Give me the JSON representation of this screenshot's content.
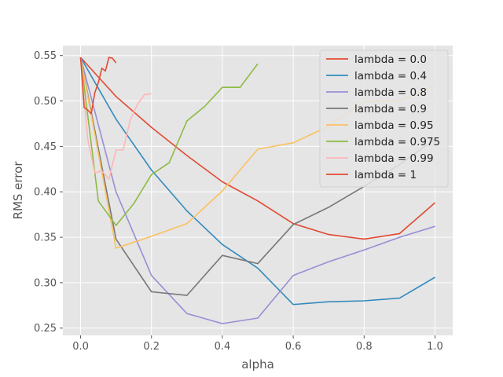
{
  "chart_data": {
    "type": "line",
    "title": "",
    "xlabel": "alpha",
    "ylabel": "RMS error",
    "xlim": [
      -0.05,
      1.05
    ],
    "ylim": [
      0.242,
      0.561
    ],
    "xticks": [
      0.0,
      0.2,
      0.4,
      0.6,
      0.8,
      1.0
    ],
    "xtick_labels": [
      "0.0",
      "0.2",
      "0.4",
      "0.6",
      "0.8",
      "1.0"
    ],
    "yticks": [
      0.25,
      0.3,
      0.35,
      0.4,
      0.45,
      0.5,
      0.55
    ],
    "ytick_labels": [
      "0.25",
      "0.30",
      "0.35",
      "0.40",
      "0.45",
      "0.50",
      "0.55"
    ],
    "grid": true,
    "legend_position": "top-right",
    "series": [
      {
        "name": "lambda = 0.0",
        "color": "#E24A33",
        "x": [
          0,
          0.1,
          0.2,
          0.3,
          0.4,
          0.5,
          0.6,
          0.7,
          0.8,
          0.9,
          1.0
        ],
        "y": [
          0.548,
          0.505,
          0.471,
          0.44,
          0.411,
          0.39,
          0.365,
          0.353,
          0.348,
          0.354,
          0.388
        ]
      },
      {
        "name": "lambda = 0.4",
        "color": "#348ABD",
        "x": [
          0,
          0.1,
          0.2,
          0.3,
          0.4,
          0.5,
          0.6,
          0.7,
          0.8,
          0.9,
          1.0
        ],
        "y": [
          0.548,
          0.48,
          0.424,
          0.379,
          0.342,
          0.316,
          0.276,
          0.279,
          0.28,
          0.283,
          0.306
        ]
      },
      {
        "name": "lambda = 0.8",
        "color": "#988ED5",
        "x": [
          0,
          0.1,
          0.2,
          0.3,
          0.4,
          0.5,
          0.6,
          0.7,
          0.8,
          0.9,
          1.0
        ],
        "y": [
          0.548,
          0.4,
          0.308,
          0.266,
          0.255,
          0.261,
          0.308,
          0.323,
          0.336,
          0.35,
          0.362
        ]
      },
      {
        "name": "lambda = 0.9",
        "color": "#777777",
        "x": [
          0,
          0.1,
          0.2,
          0.3,
          0.4,
          0.5,
          0.6,
          0.7,
          0.8,
          0.9,
          1.0
        ],
        "y": [
          0.548,
          0.348,
          0.29,
          0.286,
          0.33,
          0.321,
          0.364,
          0.383,
          0.406,
          0.43,
          0.458
        ]
      },
      {
        "name": "lambda = 0.95",
        "color": "#FBC15E",
        "x": [
          0,
          0.1,
          0.2,
          0.3,
          0.4,
          0.5,
          0.6,
          0.7,
          0.8,
          0.9,
          1.0
        ],
        "y": [
          0.548,
          0.338,
          0.351,
          0.365,
          0.401,
          0.447,
          0.454,
          0.472,
          0.5,
          0.5,
          0.517
        ]
      },
      {
        "name": "lambda = 0.975",
        "color": "#8EBA42",
        "x": [
          0,
          0.05,
          0.1,
          0.15,
          0.2,
          0.25,
          0.3,
          0.35,
          0.4,
          0.45,
          0.5
        ],
        "y": [
          0.548,
          0.39,
          0.363,
          0.387,
          0.419,
          0.432,
          0.478,
          0.494,
          0.515,
          0.515,
          0.541
        ]
      },
      {
        "name": "lambda = 0.99",
        "color": "#FFB5B8",
        "x": [
          0,
          0.02,
          0.04,
          0.06,
          0.08,
          0.1,
          0.12,
          0.14,
          0.16,
          0.18,
          0.2
        ],
        "y": [
          0.548,
          0.458,
          0.421,
          0.423,
          0.414,
          0.446,
          0.446,
          0.479,
          0.496,
          0.507,
          0.508
        ]
      },
      {
        "name": "lambda = 1",
        "color": "#E24A33",
        "x": [
          0,
          0.01,
          0.02,
          0.03,
          0.04,
          0.05,
          0.06,
          0.07,
          0.08,
          0.09,
          0.1
        ],
        "y": [
          0.548,
          0.493,
          0.49,
          0.486,
          0.509,
          0.52,
          0.536,
          0.533,
          0.548,
          0.547,
          0.542
        ]
      }
    ]
  }
}
